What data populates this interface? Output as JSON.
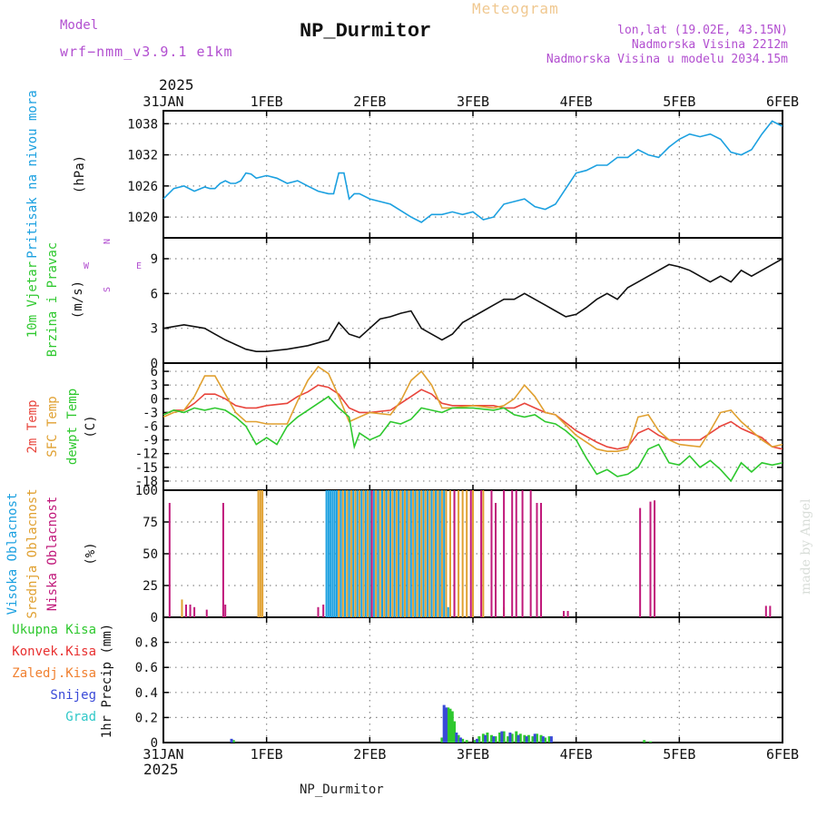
{
  "header": {
    "title": "NP_Durmitor",
    "subtitle": "Meteogram",
    "model_label": "Model",
    "model_name": "wrf−nmm_v3.9.1  e1km",
    "info_line1": "lon,lat (19.02E, 43.15N)",
    "info_line2": "Nadmorska Visina 2212m",
    "info_line3": "Nadmorska Visina u modelu 2034.15m"
  },
  "footer": {
    "station": "NP_Durmitor",
    "watermark": "made by Angel"
  },
  "time_axis": {
    "year": "2025",
    "ticks": [
      "31JAN",
      "1FEB",
      "2FEB",
      "3FEB",
      "4FEB",
      "5FEB",
      "6FEB"
    ],
    "days": 6
  },
  "colors": {
    "pressure": "#1ba0e0",
    "temp2m": "#e8453c",
    "sfc": "#e0a030",
    "dewpt": "#2ec82e",
    "high_cloud": "#1ba0e0",
    "mid_cloud": "#e0a030",
    "low_cloud": "#c0187a",
    "precip_total": "#2ec82e",
    "precip_snow": "#3a4ad8",
    "grid": "#888888"
  },
  "chart_data": [
    {
      "type": "line",
      "panel": "pressure",
      "ylabel": "Pritisak na nivou mora",
      "unit": "(hPa)",
      "ylim": [
        1016,
        1040.5
      ],
      "yticks": [
        1020,
        1026,
        1032,
        1038
      ],
      "grid": true,
      "series": [
        {
          "color_key": "pressure",
          "x": [
            0,
            0.1,
            0.2,
            0.3,
            0.4,
            0.45,
            0.5,
            0.55,
            0.6,
            0.65,
            0.7,
            0.75,
            0.8,
            0.85,
            0.9,
            1.0,
            1.1,
            1.2,
            1.3,
            1.4,
            1.5,
            1.6,
            1.65,
            1.7,
            1.75,
            1.8,
            1.85,
            1.9,
            2.0,
            2.2,
            2.4,
            2.5,
            2.6,
            2.7,
            2.8,
            2.9,
            3.0,
            3.1,
            3.2,
            3.3,
            3.4,
            3.5,
            3.6,
            3.7,
            3.8,
            3.9,
            4.0,
            4.1,
            4.2,
            4.3,
            4.4,
            4.5,
            4.6,
            4.7,
            4.8,
            4.9,
            5.0,
            5.1,
            5.2,
            5.3,
            5.4,
            5.5,
            5.6,
            5.7,
            5.8,
            5.9,
            6.0
          ],
          "values": [
            1023.5,
            1025.5,
            1026.0,
            1025.0,
            1025.8,
            1025.5,
            1025.5,
            1026.5,
            1027.0,
            1026.5,
            1026.5,
            1027.0,
            1028.5,
            1028.3,
            1027.5,
            1028.0,
            1027.5,
            1026.5,
            1027.0,
            1026.0,
            1025.0,
            1024.5,
            1024.5,
            1028.5,
            1028.5,
            1023.5,
            1024.5,
            1024.5,
            1023.5,
            1022.5,
            1020.0,
            1019.0,
            1020.5,
            1020.5,
            1021.0,
            1020.5,
            1021.0,
            1019.5,
            1020.0,
            1022.5,
            1023.0,
            1023.5,
            1022.0,
            1021.5,
            1022.5,
            1025.5,
            1028.5,
            1029.0,
            1030.0,
            1030.0,
            1031.5,
            1031.5,
            1033.0,
            1032.0,
            1031.5,
            1033.5,
            1035.0,
            1036.0,
            1035.5,
            1036.0,
            1035.0,
            1032.5,
            1032.0,
            1033.0,
            1036.0,
            1038.5,
            1037.5
          ]
        }
      ]
    },
    {
      "type": "line",
      "panel": "wind",
      "ylabel": "10m Vjetar Brzina i Pravac",
      "unit": "(m/s)",
      "compass": {
        "north": "N",
        "south": "S",
        "east": "E",
        "west": "W"
      },
      "ylim": [
        0,
        10.8
      ],
      "yticks": [
        0,
        3,
        6,
        9
      ],
      "grid": true,
      "series": [
        {
          "color_key": "dark",
          "x": [
            0,
            0.2,
            0.4,
            0.5,
            0.6,
            0.7,
            0.8,
            0.9,
            1.0,
            1.2,
            1.4,
            1.6,
            1.7,
            1.8,
            1.9,
            2.0,
            2.1,
            2.2,
            2.3,
            2.4,
            2.5,
            2.6,
            2.7,
            2.8,
            2.9,
            3.0,
            3.1,
            3.2,
            3.3,
            3.4,
            3.5,
            3.6,
            3.7,
            3.8,
            3.9,
            4.0,
            4.1,
            4.2,
            4.3,
            4.4,
            4.5,
            4.6,
            4.7,
            4.8,
            4.9,
            5.0,
            5.1,
            5.2,
            5.3,
            5.4,
            5.5,
            5.6,
            5.7,
            5.8,
            5.9,
            6.0
          ],
          "values": [
            3.0,
            3.3,
            3.0,
            2.5,
            2.0,
            1.6,
            1.2,
            1.0,
            1.0,
            1.2,
            1.5,
            2.0,
            3.5,
            2.5,
            2.2,
            3.0,
            3.8,
            4.0,
            4.3,
            4.5,
            3.0,
            2.5,
            2.0,
            2.5,
            3.5,
            4.0,
            4.5,
            5.0,
            5.5,
            5.5,
            6.0,
            5.5,
            5.0,
            4.5,
            4.0,
            4.2,
            4.8,
            5.5,
            6.0,
            5.5,
            6.5,
            7.0,
            7.5,
            8.0,
            8.5,
            8.3,
            8.0,
            7.5,
            7.0,
            7.5,
            7.0,
            8.0,
            7.5,
            8.0,
            8.5,
            9.0
          ]
        }
      ]
    },
    {
      "type": "line",
      "panel": "temperature",
      "ylabel": "2m Temp / SFC Temp / dewpt Temp",
      "unit": "(C)",
      "ylim": [
        -20,
        7.8
      ],
      "yticks": [
        -18,
        -15,
        -12,
        -9,
        -6,
        -3,
        0,
        3,
        6
      ],
      "grid": true,
      "series": [
        {
          "name": "2m Temp",
          "color_key": "temp2m",
          "x": [
            0,
            0.1,
            0.2,
            0.3,
            0.4,
            0.5,
            0.6,
            0.7,
            0.8,
            0.9,
            1.0,
            1.2,
            1.3,
            1.4,
            1.5,
            1.6,
            1.7,
            1.8,
            1.9,
            2.0,
            2.2,
            2.3,
            2.4,
            2.5,
            2.6,
            2.7,
            2.8,
            3.0,
            3.2,
            3.3,
            3.4,
            3.5,
            3.6,
            3.7,
            3.8,
            4.0,
            4.2,
            4.3,
            4.4,
            4.5,
            4.6,
            4.7,
            4.8,
            4.9,
            5.0,
            5.2,
            5.3,
            5.4,
            5.5,
            5.6,
            5.8,
            5.9,
            6.0
          ],
          "values": [
            -3.5,
            -2.5,
            -2.5,
            -1.0,
            1.0,
            1.0,
            0.0,
            -1.5,
            -2.0,
            -2.0,
            -1.5,
            -1.0,
            0.5,
            1.5,
            3.0,
            2.5,
            1.0,
            -2.0,
            -3.0,
            -3.0,
            -2.5,
            -1.0,
            0.5,
            2.0,
            1.0,
            -1.0,
            -1.5,
            -1.5,
            -1.5,
            -2.0,
            -2.0,
            -1.0,
            -2.0,
            -3.0,
            -3.5,
            -7.0,
            -9.5,
            -10.5,
            -11.0,
            -10.5,
            -7.5,
            -6.5,
            -8.0,
            -9.0,
            -9.0,
            -9.0,
            -7.5,
            -6.0,
            -5.0,
            -6.5,
            -8.5,
            -10.5,
            -11.0
          ]
        },
        {
          "name": "SFC Temp",
          "color_key": "sfc",
          "x": [
            0,
            0.1,
            0.2,
            0.3,
            0.4,
            0.5,
            0.6,
            0.7,
            0.8,
            0.9,
            1.0,
            1.2,
            1.3,
            1.4,
            1.5,
            1.6,
            1.7,
            1.8,
            1.9,
            2.0,
            2.2,
            2.3,
            2.4,
            2.5,
            2.6,
            2.7,
            2.8,
            3.0,
            3.2,
            3.3,
            3.4,
            3.5,
            3.6,
            3.7,
            3.8,
            4.0,
            4.2,
            4.3,
            4.4,
            4.5,
            4.6,
            4.7,
            4.8,
            4.9,
            5.0,
            5.2,
            5.3,
            5.4,
            5.5,
            5.6,
            5.8,
            5.9,
            6.0
          ],
          "values": [
            -4.0,
            -3.0,
            -2.5,
            0.5,
            5.0,
            5.0,
            1.0,
            -3.0,
            -5.0,
            -5.0,
            -5.5,
            -5.5,
            -0.5,
            4.0,
            7.0,
            5.5,
            0.5,
            -5.0,
            -4.0,
            -3.0,
            -3.5,
            -0.5,
            4.0,
            6.0,
            3.0,
            -2.0,
            -2.0,
            -1.5,
            -2.0,
            -1.5,
            0.0,
            3.0,
            0.5,
            -3.0,
            -3.5,
            -8.0,
            -11.0,
            -11.5,
            -11.5,
            -11.0,
            -4.0,
            -3.5,
            -7.0,
            -9.0,
            -10.0,
            -10.5,
            -7.0,
            -3.0,
            -2.5,
            -5.0,
            -9.0,
            -10.5,
            -10.0
          ]
        },
        {
          "name": "dewpt Temp",
          "color_key": "dewpt",
          "x": [
            0,
            0.1,
            0.2,
            0.3,
            0.4,
            0.5,
            0.6,
            0.7,
            0.8,
            0.9,
            1.0,
            1.1,
            1.2,
            1.3,
            1.4,
            1.5,
            1.6,
            1.7,
            1.8,
            1.85,
            1.9,
            2.0,
            2.1,
            2.2,
            2.3,
            2.4,
            2.5,
            2.6,
            2.7,
            2.8,
            3.0,
            3.2,
            3.3,
            3.4,
            3.5,
            3.6,
            3.7,
            3.8,
            3.9,
            4.0,
            4.1,
            4.2,
            4.3,
            4.4,
            4.5,
            4.6,
            4.7,
            4.8,
            4.9,
            5.0,
            5.1,
            5.2,
            5.3,
            5.4,
            5.5,
            5.6,
            5.7,
            5.8,
            5.9,
            6.0
          ],
          "values": [
            -3.5,
            -2.5,
            -3.0,
            -2.0,
            -2.5,
            -2.0,
            -2.5,
            -4.0,
            -6.0,
            -10.0,
            -8.5,
            -10.0,
            -6.0,
            -4.0,
            -2.5,
            -1.0,
            0.5,
            -2.0,
            -4.0,
            -10.5,
            -7.5,
            -9.0,
            -8.0,
            -5.0,
            -5.5,
            -4.5,
            -2.0,
            -2.5,
            -3.0,
            -2.0,
            -2.0,
            -2.5,
            -2.0,
            -3.5,
            -4.0,
            -3.5,
            -5.0,
            -5.5,
            -7.0,
            -9.0,
            -13.0,
            -16.5,
            -15.5,
            -17.0,
            -16.5,
            -15.0,
            -11.0,
            -10.0,
            -14.0,
            -14.5,
            -12.5,
            -15.0,
            -13.5,
            -15.5,
            -18.0,
            -14.0,
            -16.0,
            -14.0,
            -14.5,
            -14.0
          ]
        }
      ]
    },
    {
      "type": "bar",
      "panel": "cloud",
      "ylabel": "Visoka Oblacnost / Srednja Oblacnost / Niska Oblacnost",
      "unit": "(%)",
      "ylim": [
        0,
        100
      ],
      "yticks": [
        0,
        25,
        50,
        75,
        100
      ],
      "grid": true,
      "series": [
        {
          "name": "Visoka Oblacnost",
          "color_key": "high_cloud",
          "x": [
            1.58,
            1.6,
            1.62,
            1.64,
            1.66,
            1.68,
            1.72,
            1.76,
            1.8,
            1.84,
            1.88,
            1.92,
            1.96,
            2.0,
            2.04,
            2.08,
            2.12,
            2.16,
            2.2,
            2.24,
            2.28,
            2.32,
            2.36,
            2.4,
            2.44,
            2.48,
            2.52,
            2.56,
            2.6,
            2.64,
            2.68,
            2.72,
            2.76
          ],
          "values": [
            100,
            100,
            100,
            100,
            100,
            100,
            100,
            100,
            100,
            100,
            100,
            100,
            100,
            100,
            100,
            100,
            100,
            100,
            100,
            100,
            100,
            100,
            100,
            100,
            100,
            100,
            100,
            100,
            100,
            100,
            100,
            100,
            8
          ]
        },
        {
          "name": "Srednja Oblacnost",
          "color_key": "mid_cloud",
          "x": [
            0.18,
            0.92,
            0.94,
            0.96,
            1.7,
            1.74,
            1.78,
            1.82,
            1.86,
            1.9,
            1.94,
            1.98,
            2.02,
            2.06,
            2.1,
            2.14,
            2.18,
            2.22,
            2.26,
            2.3,
            2.34,
            2.38,
            2.42,
            2.46,
            2.5,
            2.54,
            2.58,
            2.62,
            2.66,
            2.7,
            2.74,
            2.78,
            2.82,
            2.86,
            2.9,
            2.94,
            3.0,
            3.1,
            3.3
          ],
          "values": [
            14,
            100,
            100,
            100,
            100,
            100,
            100,
            100,
            100,
            100,
            100,
            100,
            100,
            100,
            100,
            100,
            100,
            100,
            100,
            100,
            100,
            100,
            100,
            100,
            100,
            100,
            100,
            100,
            100,
            100,
            100,
            100,
            100,
            100,
            100,
            100,
            100,
            100,
            8
          ]
        },
        {
          "name": "Niska Oblacnost",
          "color_key": "low_cloud",
          "x": [
            0.06,
            0.22,
            0.26,
            0.3,
            0.42,
            0.58,
            0.6,
            1.5,
            1.55,
            2.02,
            2.82,
            2.98,
            3.08,
            3.18,
            3.22,
            3.3,
            3.38,
            3.42,
            3.48,
            3.56,
            3.62,
            3.66,
            3.88,
            3.92,
            4.62,
            4.72,
            4.76,
            5.84,
            5.88
          ],
          "values": [
            90,
            10,
            10,
            8,
            6,
            90,
            10,
            8,
            10,
            100,
            100,
            100,
            100,
            100,
            90,
            100,
            100,
            100,
            100,
            100,
            90,
            90,
            5,
            5,
            86,
            91,
            92,
            9,
            9
          ]
        }
      ]
    },
    {
      "type": "bar",
      "panel": "precip",
      "ylabel": "1hr Precip (mm)",
      "legend": [
        "Ukupna Kisa",
        "Konvek.Kisa",
        "Zaledj.Kisa",
        "Snijeg",
        "Grad"
      ],
      "legend_colors": [
        "#2ec82e",
        "#e83030",
        "#f08030",
        "#3a4ad8",
        "#30c8c8"
      ],
      "ylim": [
        0,
        1.0
      ],
      "yticks": [
        0,
        0.2,
        0.4,
        0.6,
        0.8
      ],
      "grid": true,
      "series": [
        {
          "name": "Ukupna Kisa",
          "color_key": "precip_total",
          "x": [
            0.68,
            2.7,
            2.74,
            2.76,
            2.78,
            2.8,
            2.82,
            2.86,
            2.9,
            2.94,
            3.02,
            3.06,
            3.1,
            3.14,
            3.18,
            3.22,
            3.26,
            3.3,
            3.34,
            3.38,
            3.42,
            3.46,
            3.5,
            3.54,
            3.58,
            3.62,
            3.66,
            3.7,
            3.74,
            4.66,
            4.72
          ],
          "values": [
            0.02,
            0.04,
            0.1,
            0.28,
            0.27,
            0.25,
            0.17,
            0.06,
            0.03,
            0.02,
            0.02,
            0.05,
            0.07,
            0.08,
            0.06,
            0.05,
            0.08,
            0.09,
            0.05,
            0.07,
            0.09,
            0.07,
            0.06,
            0.06,
            0.05,
            0.07,
            0.06,
            0.04,
            0.05,
            0.02,
            0.01
          ]
        },
        {
          "name": "Snijeg",
          "color_key": "precip_snow",
          "x": [
            0.66,
            2.72,
            2.74,
            2.84,
            2.88,
            3.04,
            3.12,
            3.2,
            3.28,
            3.36,
            3.44,
            3.52,
            3.6,
            3.68,
            3.76
          ],
          "values": [
            0.03,
            0.3,
            0.28,
            0.08,
            0.04,
            0.03,
            0.06,
            0.05,
            0.09,
            0.08,
            0.06,
            0.05,
            0.07,
            0.05,
            0.05
          ]
        }
      ]
    }
  ]
}
